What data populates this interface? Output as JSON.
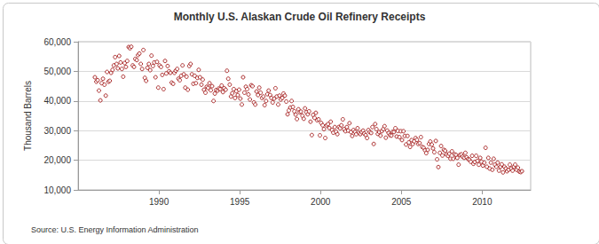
{
  "chart_data": {
    "type": "scatter",
    "title": "Monthly U.S. Alaskan Crude Oil Refinery Receipts",
    "y_label": "Thousand Barrels",
    "annotations": [
      "Source: U.S. Energy Information Administration"
    ],
    "color": "#990000",
    "marker": "circle",
    "grid": true,
    "xlim": [
      1985,
      2013
    ],
    "xticks": [
      1990,
      1995,
      2000,
      2005,
      2010
    ],
    "ylim": [
      10000,
      60000
    ],
    "yticks": [
      {
        "value": 10000,
        "label": "10,000"
      },
      {
        "value": 20000,
        "label": "20,000"
      },
      {
        "value": 30000,
        "label": "30,000"
      },
      {
        "value": 40000,
        "label": "40,000"
      },
      {
        "value": 50000,
        "label": "50,000"
      },
      {
        "value": 60000,
        "label": "60,000"
      }
    ],
    "x": [
      1986.04,
      1986.13,
      1986.21,
      1986.29,
      1986.38,
      1986.46,
      1986.54,
      1986.63,
      1986.71,
      1986.79,
      1986.88,
      1986.96,
      1987.04,
      1987.13,
      1987.21,
      1987.29,
      1987.38,
      1987.46,
      1987.54,
      1987.63,
      1987.71,
      1987.79,
      1987.88,
      1987.96,
      1988.04,
      1988.13,
      1988.21,
      1988.29,
      1988.38,
      1988.46,
      1988.54,
      1988.63,
      1988.71,
      1988.79,
      1988.88,
      1988.96,
      1989.04,
      1989.13,
      1989.21,
      1989.29,
      1989.38,
      1989.46,
      1989.54,
      1989.63,
      1989.71,
      1989.79,
      1989.88,
      1989.96,
      1990.04,
      1990.13,
      1990.21,
      1990.29,
      1990.38,
      1990.46,
      1990.54,
      1990.63,
      1990.71,
      1990.79,
      1990.88,
      1990.96,
      1991.04,
      1991.13,
      1991.21,
      1991.29,
      1991.38,
      1991.46,
      1991.54,
      1991.63,
      1991.71,
      1991.79,
      1991.88,
      1991.96,
      1992.04,
      1992.13,
      1992.21,
      1992.29,
      1992.38,
      1992.46,
      1992.54,
      1992.63,
      1992.71,
      1992.79,
      1992.88,
      1992.96,
      1993.04,
      1993.13,
      1993.21,
      1993.29,
      1993.38,
      1993.46,
      1993.54,
      1993.63,
      1993.71,
      1993.79,
      1993.88,
      1993.96,
      1994.04,
      1994.13,
      1994.21,
      1994.29,
      1994.38,
      1994.46,
      1994.54,
      1994.63,
      1994.71,
      1994.79,
      1994.88,
      1994.96,
      1995.04,
      1995.13,
      1995.21,
      1995.29,
      1995.38,
      1995.46,
      1995.54,
      1995.63,
      1995.71,
      1995.79,
      1995.88,
      1995.96,
      1996.04,
      1996.13,
      1996.21,
      1996.29,
      1996.38,
      1996.46,
      1996.54,
      1996.63,
      1996.71,
      1996.79,
      1996.88,
      1996.96,
      1997.04,
      1997.13,
      1997.21,
      1997.29,
      1997.38,
      1997.46,
      1997.54,
      1997.63,
      1997.71,
      1997.79,
      1997.88,
      1997.96,
      1998.04,
      1998.13,
      1998.21,
      1998.29,
      1998.38,
      1998.46,
      1998.54,
      1998.63,
      1998.71,
      1998.79,
      1998.88,
      1998.96,
      1999.04,
      1999.13,
      1999.21,
      1999.29,
      1999.38,
      1999.46,
      1999.54,
      1999.63,
      1999.71,
      1999.79,
      1999.88,
      1999.96,
      2000.04,
      2000.13,
      2000.21,
      2000.29,
      2000.38,
      2000.46,
      2000.54,
      2000.63,
      2000.71,
      2000.79,
      2000.88,
      2000.96,
      2001.04,
      2001.13,
      2001.21,
      2001.29,
      2001.38,
      2001.46,
      2001.54,
      2001.63,
      2001.71,
      2001.79,
      2001.88,
      2001.96,
      2002.04,
      2002.13,
      2002.21,
      2002.29,
      2002.38,
      2002.46,
      2002.54,
      2002.63,
      2002.71,
      2002.79,
      2002.88,
      2002.96,
      2003.04,
      2003.13,
      2003.21,
      2003.29,
      2003.38,
      2003.46,
      2003.54,
      2003.63,
      2003.71,
      2003.79,
      2003.88,
      2003.96,
      2004.04,
      2004.13,
      2004.21,
      2004.29,
      2004.38,
      2004.46,
      2004.54,
      2004.63,
      2004.71,
      2004.79,
      2004.88,
      2004.96,
      2005.04,
      2005.13,
      2005.21,
      2005.29,
      2005.38,
      2005.46,
      2005.54,
      2005.63,
      2005.71,
      2005.79,
      2005.88,
      2005.96,
      2006.04,
      2006.13,
      2006.21,
      2006.29,
      2006.38,
      2006.46,
      2006.54,
      2006.63,
      2006.71,
      2006.79,
      2006.88,
      2006.96,
      2007.04,
      2007.13,
      2007.21,
      2007.29,
      2007.38,
      2007.46,
      2007.54,
      2007.63,
      2007.71,
      2007.79,
      2007.88,
      2007.96,
      2008.04,
      2008.13,
      2008.21,
      2008.29,
      2008.38,
      2008.46,
      2008.54,
      2008.63,
      2008.71,
      2008.79,
      2008.88,
      2008.96,
      2009.04,
      2009.13,
      2009.21,
      2009.29,
      2009.38,
      2009.46,
      2009.54,
      2009.63,
      2009.71,
      2009.79,
      2009.88,
      2009.96,
      2010.04,
      2010.13,
      2010.21,
      2010.29,
      2010.38,
      2010.46,
      2010.54,
      2010.63,
      2010.71,
      2010.79,
      2010.88,
      2010.96,
      2011.04,
      2011.13,
      2011.21,
      2011.29,
      2011.38,
      2011.46,
      2011.54,
      2011.63,
      2011.71,
      2011.79,
      2011.88,
      2011.96,
      2012.04,
      2012.13,
      2012.21,
      2012.29,
      2012.38,
      2012.46
    ],
    "values": [
      48000,
      46500,
      47000,
      43500,
      40200,
      46000,
      47500,
      45500,
      41800,
      49800,
      46500,
      46800,
      49500,
      50500,
      52000,
      54800,
      52500,
      51000,
      55200,
      53000,
      50800,
      48200,
      52800,
      51500,
      53500,
      58200,
      57800,
      58300,
      52000,
      51500,
      54200,
      53800,
      55500,
      56000,
      52500,
      50800,
      57200,
      47800,
      46800,
      51200,
      52500,
      50400,
      55300,
      51800,
      53000,
      48000,
      53200,
      44500,
      52000,
      51500,
      48800,
      44000,
      53500,
      49300,
      51800,
      50000,
      49500,
      46200,
      45800,
      49500,
      50200,
      50800,
      47500,
      47000,
      48500,
      52000,
      49000,
      44500,
      48200,
      43800,
      51800,
      52500,
      49000,
      45800,
      48500,
      46000,
      47800,
      50500,
      48000,
      45500,
      47200,
      43800,
      42800,
      44800,
      44400,
      46000,
      43600,
      45000,
      40000,
      42500,
      43700,
      43500,
      44200,
      44000,
      45200,
      43000,
      44300,
      43800,
      50200,
      47500,
      45500,
      41500,
      42600,
      44000,
      41000,
      43300,
      42000,
      43800,
      40800,
      38800,
      48000,
      42800,
      44800,
      44000,
      42200,
      40500,
      45300,
      45000,
      39500,
      38800,
      43200,
      42000,
      44500,
      42800,
      41000,
      41500,
      38600,
      40000,
      42300,
      43500,
      42000,
      41000,
      39500,
      40800,
      44300,
      41500,
      38800,
      41800,
      40500,
      41000,
      42500,
      41800,
      39800,
      35500,
      36800,
      37800,
      40000,
      38000,
      36500,
      35400,
      33900,
      37200,
      36200,
      36400,
      35000,
      34000,
      37500,
      36200,
      35500,
      36500,
      33000,
      28500,
      35300,
      34300,
      36000,
      33500,
      33800,
      28400,
      32600,
      31800,
      30500,
      27500,
      31800,
      32200,
      30900,
      33000,
      30200,
      29300,
      31200,
      29600,
      28800,
      31200,
      30800,
      31800,
      33800,
      30500,
      29800,
      31200,
      30000,
      32500,
      29500,
      28200,
      30200,
      29600,
      28800,
      30800,
      29200,
      28800,
      29500,
      30000,
      29000,
      28500,
      27500,
      30200,
      29500,
      29200,
      31200,
      25500,
      32200,
      30500,
      28900,
      29500,
      28300,
      29800,
      30500,
      31500,
      27600,
      30000,
      29200,
      28500,
      28300,
      29600,
      29500,
      30800,
      28000,
      29900,
      27800,
      29800,
      26800,
      29800,
      28200,
      25300,
      28200,
      26000,
      24500,
      26800,
      25500,
      26400,
      27500,
      26900,
      25500,
      25800,
      27800,
      24500,
      24200,
      23400,
      22400,
      23500,
      25500,
      26300,
      25300,
      24000,
      22700,
      26500,
      20300,
      17700,
      22500,
      24800,
      21600,
      23500,
      23200,
      22000,
      21500,
      22200,
      20500,
      23000,
      20500,
      22000,
      21800,
      20800,
      18500,
      21800,
      22000,
      21200,
      20800,
      22500,
      21000,
      20400,
      20200,
      19500,
      21500,
      18800,
      19400,
      21500,
      19800,
      18500,
      20800,
      19500,
      18200,
      19200,
      24200,
      17800,
      20800,
      17200,
      19200,
      16800,
      20500,
      18500,
      17800,
      19200,
      16500,
      17800,
      18600,
      15900,
      17800,
      17200,
      16300,
      16800,
      18500,
      17200,
      16500,
      17800,
      18500,
      16800,
      17500,
      16200,
      16000,
      16300
    ]
  }
}
